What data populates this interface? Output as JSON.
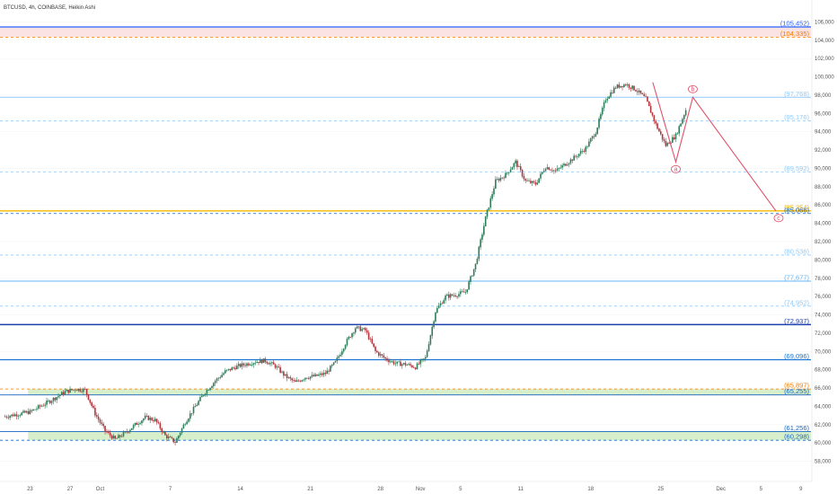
{
  "title": "BTCUSD, 4h, COINBASE, Heikin Ashi",
  "chart_data": {
    "type": "candlestick",
    "symbol": "BTCUSD",
    "timeframe": "4h",
    "exchange": "COINBASE",
    "style": "Heikin Ashi",
    "ylim": [
      56000,
      108000
    ],
    "y_ticks": [
      58000,
      60000,
      62000,
      64000,
      66000,
      68000,
      70000,
      72000,
      74000,
      76000,
      78000,
      80000,
      82000,
      84000,
      86000,
      88000,
      90000,
      92000,
      94000,
      96000,
      98000,
      100000,
      102000,
      104000,
      106000
    ],
    "y_tick_labels": [
      "58,000",
      "60,000",
      "62,000",
      "64,000",
      "66,000",
      "68,000",
      "70,000",
      "72,000",
      "74,000",
      "76,000",
      "78,000",
      "80,000",
      "82,000",
      "84,000",
      "86,000",
      "88,000",
      "90,000",
      "92,000",
      "94,000",
      "96,000",
      "98,000",
      "100,000",
      "102,000",
      "104,000",
      "106,000"
    ],
    "x_range_days": [
      -3,
      42
    ],
    "x_ticks": [
      {
        "label": "23",
        "day": 0
      },
      {
        "label": "27",
        "day": 4
      },
      {
        "label": "Oct",
        "day": 7
      },
      {
        "label": "7",
        "day": 14
      },
      {
        "label": "14",
        "day": 21
      },
      {
        "label": "21",
        "day": 28
      },
      {
        "label": "28",
        "day": 35
      },
      {
        "label": "Nov",
        "day": 39
      },
      {
        "label": "5",
        "day": 43
      },
      {
        "label": "11",
        "day": 49
      },
      {
        "label": "18",
        "day": 56
      },
      {
        "label": "25",
        "day": 63
      },
      {
        "label": "Dec",
        "day": 69
      },
      {
        "label": "5",
        "day": 73
      },
      {
        "label": "9",
        "day": 77
      }
    ],
    "price_path": [
      [
        -2.5,
        62900
      ],
      [
        0,
        63400
      ],
      [
        2,
        64600
      ],
      [
        3.5,
        65600
      ],
      [
        4.5,
        65900
      ],
      [
        5.5,
        65800
      ],
      [
        6.5,
        63200
      ],
      [
        7.5,
        61300
      ],
      [
        8.5,
        60400
      ],
      [
        9.5,
        61100
      ],
      [
        10.5,
        62000
      ],
      [
        11.5,
        62800
      ],
      [
        12.5,
        62500
      ],
      [
        13.5,
        60800
      ],
      [
        14.5,
        60100
      ],
      [
        15.5,
        62300
      ],
      [
        16.5,
        64000
      ],
      [
        17.5,
        65600
      ],
      [
        18.5,
        66800
      ],
      [
        19.5,
        67800
      ],
      [
        20.5,
        68300
      ],
      [
        21.5,
        68600
      ],
      [
        22.5,
        68900
      ],
      [
        23.5,
        69000
      ],
      [
        24.5,
        68400
      ],
      [
        25.5,
        67300
      ],
      [
        26.5,
        66600
      ],
      [
        27.5,
        67200
      ],
      [
        28.5,
        67300
      ],
      [
        29.5,
        67600
      ],
      [
        30.5,
        68800
      ],
      [
        31.5,
        70900
      ],
      [
        32.5,
        72600
      ],
      [
        33.5,
        72300
      ],
      [
        34.5,
        70000
      ],
      [
        35.5,
        69200
      ],
      [
        36.5,
        68700
      ],
      [
        37.5,
        68600
      ],
      [
        38.5,
        68300
      ],
      [
        39.5,
        69300
      ],
      [
        40.5,
        74400
      ],
      [
        41.5,
        76000
      ],
      [
        42.5,
        76200
      ],
      [
        43.5,
        76500
      ],
      [
        44.5,
        79500
      ],
      [
        45.5,
        84600
      ],
      [
        46.5,
        88600
      ],
      [
        47.5,
        89300
      ],
      [
        48.5,
        90700
      ],
      [
        49.5,
        88600
      ],
      [
        50.5,
        88300
      ],
      [
        51.5,
        90200
      ],
      [
        52.5,
        89700
      ],
      [
        53.5,
        90500
      ],
      [
        54.5,
        91300
      ],
      [
        55.5,
        92200
      ],
      [
        56.5,
        94000
      ],
      [
        57.5,
        97600
      ],
      [
        58.5,
        98900
      ],
      [
        59.5,
        99200
      ],
      [
        60.5,
        98600
      ],
      [
        61.5,
        97600
      ],
      [
        62.5,
        94800
      ],
      [
        63.5,
        92500
      ],
      [
        64.5,
        93600
      ],
      [
        65.5,
        96400
      ]
    ],
    "levels": [
      {
        "value": 105452,
        "label": "(105,452)",
        "color": "#2962ff",
        "style": "solid",
        "width": 1.2
      },
      {
        "value": 104335,
        "label": "(104,335)",
        "color": "#f57c00",
        "style": "dashed",
        "width": 0.8
      },
      {
        "value": 97768,
        "label": "(97,768)",
        "color": "#90caf9",
        "style": "solid",
        "width": 1
      },
      {
        "value": 95176,
        "label": "(95,176)",
        "color": "#90caf9",
        "style": "dashed",
        "width": 0.8
      },
      {
        "value": 89592,
        "label": "(89,592)",
        "color": "#90caf9",
        "style": "dashed",
        "width": 0.8
      },
      {
        "value": 85354,
        "label": "(85,354)",
        "color": "#f5b700",
        "style": "solid",
        "width": 1.4
      },
      {
        "value": 85066,
        "label": "(85,066)",
        "color": "#1565c0",
        "style": "dashed",
        "width": 0.8
      },
      {
        "value": 80536,
        "label": "(80,536)",
        "color": "#90caf9",
        "style": "dashed",
        "width": 0.8
      },
      {
        "value": 77677,
        "label": "(77,677)",
        "color": "#64b5f6",
        "style": "solid",
        "width": 1
      },
      {
        "value": 74952,
        "label": "(74,952)",
        "color": "#90caf9",
        "style": "dashed",
        "width": 0.8
      },
      {
        "value": 72937,
        "label": "(72,937)",
        "color": "#1e40af",
        "style": "solid",
        "width": 1.4
      },
      {
        "value": 69096,
        "label": "(69,096)",
        "color": "#1976d2",
        "style": "solid",
        "width": 1.2
      },
      {
        "value": 65897,
        "label": "(65,897)",
        "color": "#f57c00",
        "style": "dashed",
        "width": 0.8
      },
      {
        "value": 65255,
        "label": "(65,255)",
        "color": "#1565c0",
        "style": "solid",
        "width": 0.8
      },
      {
        "value": 61256,
        "label": "(61,256)",
        "color": "#1565c0",
        "style": "solid",
        "width": 0.8
      },
      {
        "value": 60298,
        "label": "(60,298)",
        "color": "#1565c0",
        "style": "dashed",
        "width": 0.8
      }
    ],
    "zones": [
      {
        "from": 104335,
        "to": 105452,
        "color": "#fbe3e3"
      },
      {
        "from": 65255,
        "to": 65897,
        "color": "#d8efcc"
      },
      {
        "from": 60298,
        "to": 61256,
        "color": "#d8efcc"
      }
    ],
    "projection": {
      "color": "#e0526b",
      "points": [
        {
          "label": "",
          "day": 62.2,
          "value": 99400
        },
        {
          "label": "a",
          "day": 64.5,
          "value": 90700
        },
        {
          "label": "b",
          "day": 66.2,
          "value": 97768
        },
        {
          "label": "c",
          "day": 74.5,
          "value": 85354
        }
      ]
    }
  }
}
